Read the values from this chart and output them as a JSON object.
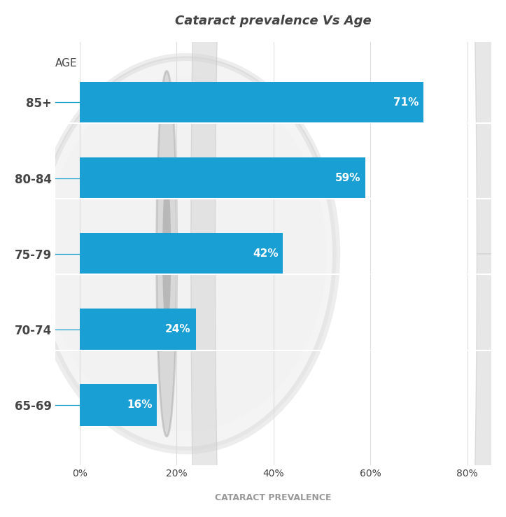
{
  "title": "Cataract prevalence Vs Age",
  "categories": [
    "85+",
    "80-84",
    "75-79",
    "70-74",
    "65-69"
  ],
  "values": [
    71,
    59,
    42,
    24,
    16
  ],
  "labels": [
    "71%",
    "59%",
    "42%",
    "24%",
    "16%"
  ],
  "bar_color": "#1a9fd4",
  "bar_height": 0.55,
  "xlim_min": -5,
  "xlim_max": 85,
  "ylim_min": -0.8,
  "ylim_max": 4.8,
  "xticks": [
    0,
    20,
    40,
    60,
    80
  ],
  "xtick_labels": [
    "0%",
    "20%",
    "40%",
    "60%",
    "80%"
  ],
  "xlabel": "CATARACT PREVALENCE",
  "ylabel": "AGE",
  "background_color": "#ffffff",
  "title_fontsize": 13,
  "label_fontsize": 11,
  "tick_fontsize": 10,
  "axis_label_fontsize": 9,
  "ylabel_fontsize": 11,
  "text_color": "#444444",
  "xlabel_color": "#999999",
  "grid_color": "#dddddd",
  "connector_color": "#1a9fd4",
  "eye_sclera_color": "#e0e0e0",
  "eye_sclera_edge": "#cccccc",
  "eye_iris_color": "#c0c0c0",
  "eye_iris_edge": "#aaaaaa",
  "eye_pupil_color": "#999999",
  "mag_ring_color": "#d8d8d8",
  "mag_ring_edge": "#cccccc",
  "mag_handle_color": "#d0d0d0"
}
